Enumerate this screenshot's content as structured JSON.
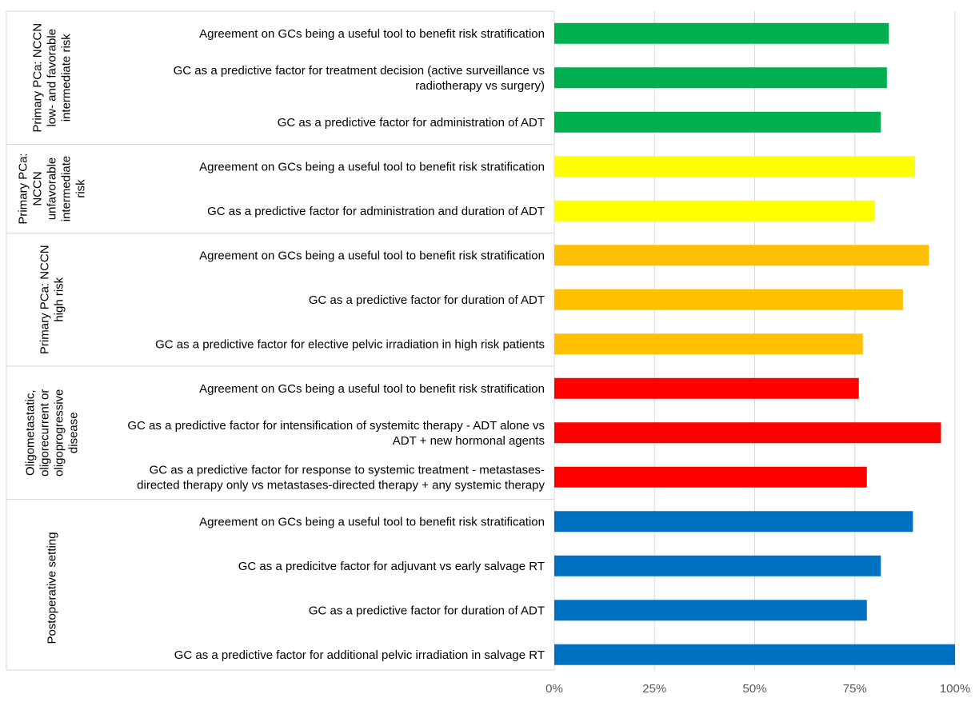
{
  "chart_data": {
    "type": "bar",
    "orientation": "horizontal",
    "xlim": [
      0,
      100
    ],
    "x_ticks": [
      "0%",
      "25%",
      "50%",
      "75%",
      "100%"
    ],
    "grid": true,
    "groups": [
      {
        "label_lines": [
          "Primary PCa: NCCN",
          "low- and favorable",
          "intermediate risk"
        ],
        "color": "#00b050",
        "items": [
          {
            "label_lines": [
              "Agreement on GCs being a useful tool to benefit risk stratification"
            ],
            "value": 83.5
          },
          {
            "label_lines": [
              "GC as a predictive factor for treatment decision (active surveillance vs",
              "radiotherapy vs surgery)"
            ],
            "value": 83
          },
          {
            "label_lines": [
              "GC as a predictive factor for administration of ADT"
            ],
            "value": 81.5
          }
        ]
      },
      {
        "label_lines": [
          "Primary PCa:",
          "NCCN",
          "unfavorable",
          "intermediate",
          "risk"
        ],
        "color": "#ffff00",
        "items": [
          {
            "label_lines": [
              "Agreement on GCs being a useful tool to benefit risk stratification"
            ],
            "value": 90
          },
          {
            "label_lines": [
              "GC as a predictive factor for administration and duration of ADT"
            ],
            "value": 80
          }
        ]
      },
      {
        "label_lines": [
          "Primary PCa: NCCN",
          "high risk"
        ],
        "color": "#ffc000",
        "items": [
          {
            "label_lines": [
              "Agreement on GCs being a useful tool to benefit risk stratification"
            ],
            "value": 93.5
          },
          {
            "label_lines": [
              "GC as a predictive factor for duration of ADT"
            ],
            "value": 87
          },
          {
            "label_lines": [
              "GC as a predictive factor for elective pelvic irradiation in high risk patients"
            ],
            "value": 77
          }
        ]
      },
      {
        "label_lines": [
          "Oligometastatic,",
          "oligorecurrent or",
          "oligoprogressive",
          "disease"
        ],
        "color": "#ff0000",
        "items": [
          {
            "label_lines": [
              "Agreement on GCs being a useful tool to benefit risk stratification"
            ],
            "value": 76
          },
          {
            "label_lines": [
              "GC as a predictive factor for intensification of systemitc therapy - ADT alone vs",
              "ADT + new hormonal agents"
            ],
            "value": 96.5
          },
          {
            "label_lines": [
              "GC as a predictive factor for response to systemic treatment - metastases-",
              "directed therapy only vs metastases-directed therapy + any systemic therapy"
            ],
            "value": 78
          }
        ]
      },
      {
        "label_lines": [
          "Postoperative setting"
        ],
        "color": "#0070c0",
        "items": [
          {
            "label_lines": [
              "Agreement on GCs being a useful tool to benefit risk stratification"
            ],
            "value": 89.5
          },
          {
            "label_lines": [
              "GC as a predicitve factor for adjuvant vs early salvage RT"
            ],
            "value": 81.5
          },
          {
            "label_lines": [
              "GC as a predictive factor for duration of ADT"
            ],
            "value": 78
          },
          {
            "label_lines": [
              "GC as a predictive factor for additional pelvic irradiation in salvage RT"
            ],
            "value": 100
          }
        ]
      }
    ]
  }
}
